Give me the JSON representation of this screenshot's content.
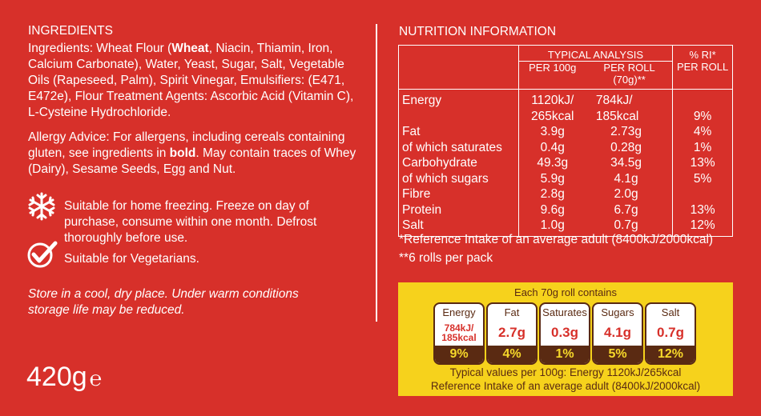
{
  "ingredients": {
    "heading": "INGREDIENTS",
    "parts": [
      "Ingredients: Wheat Flour (",
      "Wheat",
      ", Niacin, Thiamin, Iron, Calcium Carbonate), Water, Yeast, Sugar, Salt, Vegetable Oils (Rapeseed, Palm), Spirit Vinegar, Emulsifiers: (E471, E472e), Flour Treatment Agents: Ascorbic Acid (Vitamin C), L-Cysteine Hydrochloride."
    ]
  },
  "allergy": {
    "parts": [
      "Allergy Advice: For allergens, including cereals containing gluten, see ingredients in ",
      "bold",
      ". May contain traces of Whey (Dairy), Sesame Seeds, Egg and Nut."
    ]
  },
  "freezing": "Suitable for home freezing. Freeze on day of purchase, consume within one month. Defrost thoroughly before use.",
  "vegetarian": "Suitable for Vegetarians.",
  "storage": "Store in a cool, dry place. Under warm conditions storage life may be reduced.",
  "weight": {
    "amount": "420g",
    "mark": "℮"
  },
  "nutrition": {
    "heading": "NUTRITION INFORMATION",
    "group_header": "TYPICAL ANALYSIS",
    "columns": [
      "PER 100g",
      "PER ROLL (70g)**"
    ],
    "ri_header": [
      "% RI*",
      "PER ROLL"
    ],
    "rows": [
      {
        "label": "Energy",
        "per_100g": "1120kJ/ 265kcal",
        "per_roll": "784kJ/ 185kcal",
        "ri": "9%"
      },
      {
        "label": "Fat",
        "per_100g": "3.9g",
        "per_roll": "2.73g",
        "ri": "4%"
      },
      {
        "label": "of which saturates",
        "per_100g": "0.4g",
        "per_roll": "0.28g",
        "ri": "1%"
      },
      {
        "label": "Carbohydrate",
        "per_100g": "49.3g",
        "per_roll": "34.5g",
        "ri": "13%"
      },
      {
        "label": "of which sugars",
        "per_100g": "5.9g",
        "per_roll": "4.1g",
        "ri": "5%"
      },
      {
        "label": "Fibre",
        "per_100g": "2.8g",
        "per_roll": "2.0g"
      },
      {
        "label": "Protein",
        "per_100g": "9.6g",
        "per_roll": "6.7g",
        "ri": "13%"
      },
      {
        "label": "Salt",
        "per_100g": "1.0g",
        "per_roll": "0.7g",
        "ri": "12%"
      }
    ],
    "footnotes": [
      "*Reference Intake of an average adult (8400kJ/2000kcal)",
      "**6 rolls per pack"
    ]
  },
  "front_of_pack": {
    "heading": "Each 70g roll contains",
    "items": [
      {
        "name": "Energy",
        "value": "784kJ/ 185kcal",
        "percent": "9%"
      },
      {
        "name": "Fat",
        "value": "2.7g",
        "percent": "4%"
      },
      {
        "name": "Saturates",
        "value": "0.3g",
        "percent": "1%"
      },
      {
        "name": "Sugars",
        "value": "4.1g",
        "percent": "5%"
      },
      {
        "name": "Salt",
        "value": "0.7g",
        "percent": "12%"
      }
    ],
    "footer": [
      "Typical values per 100g: Energy 1120kJ/265kcal",
      "Reference Intake of an average adult (8400kJ/2000kcal)"
    ]
  }
}
